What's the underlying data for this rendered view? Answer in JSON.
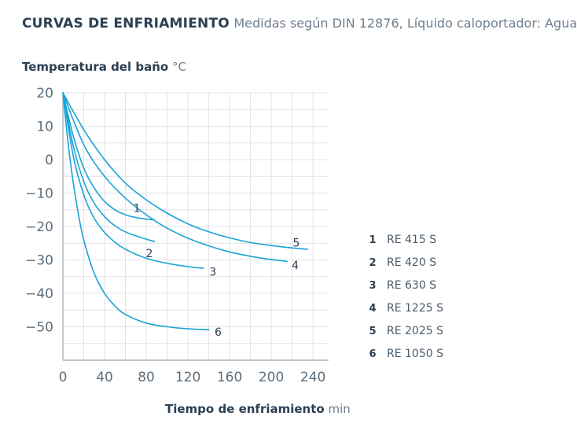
{
  "header": {
    "title": "CURVAS DE ENFRIAMIENTO",
    "subtitle": "Medidas según DIN 12876, Líquido caloportador: Agua"
  },
  "axes": {
    "ylabel": "Temperatura del baño",
    "yunit": "°C",
    "xlabel": "Tiempo de enfriamiento",
    "xunit": "min"
  },
  "colors": {
    "curve": "#1aa3d6",
    "grid": "#e0e3e6",
    "axis": "#9aa5ae",
    "text": "#2b3f52"
  },
  "chart_data": {
    "type": "line",
    "xlabel": "Tiempo de enfriamiento min",
    "ylabel": "Temperatura del baño °C",
    "xlim": [
      0,
      255
    ],
    "ylim": [
      -60,
      20
    ],
    "xticks": [
      0,
      40,
      80,
      120,
      160,
      200,
      240
    ],
    "yticks": [
      20,
      10,
      0,
      -10,
      -20,
      -30,
      -40,
      -50
    ],
    "grid": true,
    "legend_position": "right",
    "series": [
      {
        "name": "RE 415 S",
        "label": "1",
        "x": [
          0,
          10,
          20,
          30,
          40,
          50,
          60,
          70,
          80,
          88
        ],
        "y": [
          20,
          7,
          -2.5,
          -8.5,
          -12.5,
          -15,
          -16.5,
          -17.3,
          -17.8,
          -18
        ]
      },
      {
        "name": "RE 420 S",
        "label": "2",
        "x": [
          0,
          10,
          20,
          30,
          40,
          50,
          60,
          70,
          80,
          88
        ],
        "y": [
          20,
          4,
          -6.5,
          -13,
          -17,
          -19.8,
          -21.6,
          -22.8,
          -23.8,
          -24.5
        ]
      },
      {
        "name": "RE 630 S",
        "label": "3",
        "x": [
          0,
          10,
          20,
          30,
          40,
          50,
          60,
          80,
          100,
          120,
          135
        ],
        "y": [
          20,
          1,
          -10.5,
          -17.5,
          -21.8,
          -24.7,
          -26.8,
          -29.5,
          -31,
          -32,
          -32.5
        ]
      },
      {
        "name": "RE 1225 S",
        "label": "4",
        "x": [
          0,
          20,
          40,
          60,
          80,
          100,
          120,
          140,
          160,
          180,
          200,
          215
        ],
        "y": [
          20,
          4.5,
          -5,
          -11.5,
          -16.5,
          -20.5,
          -23.5,
          -25.8,
          -27.6,
          -28.9,
          -29.9,
          -30.4
        ]
      },
      {
        "name": "RE 2025 S",
        "label": "5",
        "x": [
          0,
          20,
          40,
          60,
          80,
          100,
          120,
          140,
          160,
          180,
          200,
          220,
          235
        ],
        "y": [
          20,
          9,
          0,
          -7,
          -12,
          -16,
          -19.2,
          -21.6,
          -23.4,
          -24.8,
          -25.7,
          -26.4,
          -26.8
        ]
      },
      {
        "name": "RE 1050 S",
        "label": "6",
        "x": [
          0,
          5,
          10,
          15,
          20,
          30,
          40,
          50,
          60,
          80,
          100,
          120,
          140
        ],
        "y": [
          20,
          5,
          -7,
          -16.5,
          -24,
          -34,
          -40,
          -43.8,
          -46.3,
          -48.9,
          -50,
          -50.6,
          -50.9
        ]
      }
    ],
    "curve_labels": [
      {
        "label": "1",
        "x": 71,
        "y": -14.5
      },
      {
        "label": "2",
        "x": 83,
        "y": -28
      },
      {
        "label": "3",
        "x": 144,
        "y": -33.5
      },
      {
        "label": "4",
        "x": 223,
        "y": -31.5
      },
      {
        "label": "5",
        "x": 224,
        "y": -24.8
      },
      {
        "label": "6",
        "x": 149,
        "y": -51.5
      }
    ]
  }
}
